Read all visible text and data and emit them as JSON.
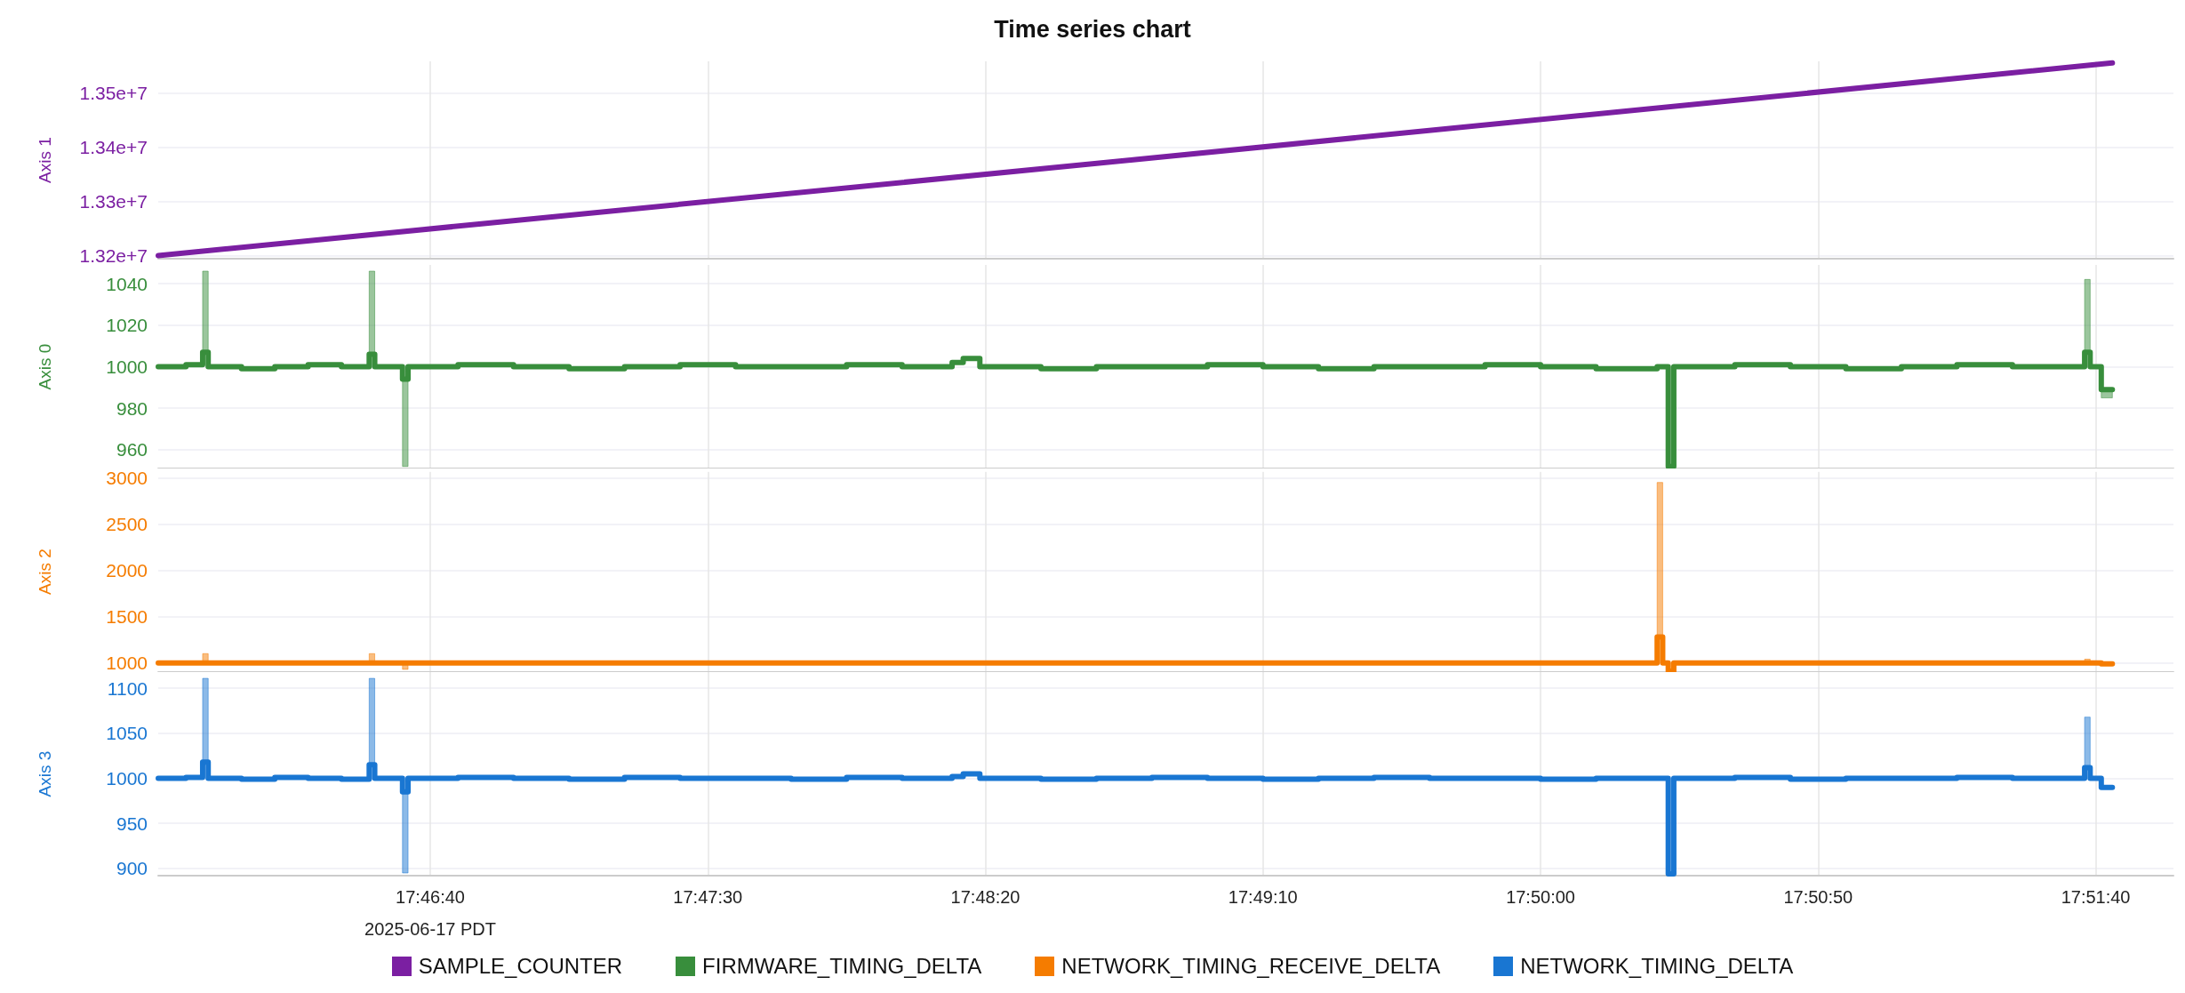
{
  "chart_data": [
    {
      "type": "line",
      "title": "Time series chart",
      "ylabel": "Axis 1",
      "x": [
        "2025-06-17T17:45:51",
        "2025-06-17T17:48:47",
        "2025-06-17T17:51:43"
      ],
      "series": [
        {
          "name": "SAMPLE_COUNTER",
          "color": "#7b1fa2",
          "values": [
            13200000,
            13377000,
            13555000
          ]
        }
      ],
      "xlim": [
        "2025-06-17T17:45:51",
        "2025-06-17T17:51:54"
      ],
      "xticks": [
        {
          "value": "2025-06-17T17:46:40",
          "label": null
        },
        {
          "value": "2025-06-17T17:47:30",
          "label": null
        },
        {
          "value": "2025-06-17T17:48:20",
          "label": null
        },
        {
          "value": "2025-06-17T17:49:10",
          "label": null
        },
        {
          "value": "2025-06-17T17:50:00",
          "label": null
        },
        {
          "value": "2025-06-17T17:50:50",
          "label": null
        },
        {
          "value": "2025-06-17T17:51:40",
          "label": null
        }
      ],
      "ylim": [
        13194000,
        13558000
      ],
      "yticks": [
        {
          "value": 13200000,
          "label": "1.32e+7"
        },
        {
          "value": 13300000,
          "label": "1.33e+7"
        },
        {
          "value": 13400000,
          "label": "1.34e+7"
        },
        {
          "value": 13500000,
          "label": "1.35e+7"
        }
      ],
      "grid": true,
      "legend": "bottom",
      "tick_labels": "y"
    },
    {
      "type": "step",
      "ylabel": "Axis 0",
      "x": [
        "2025-06-17T17:45:51",
        "2025-06-17T17:45:56",
        "2025-06-17T17:45:59",
        "2025-06-17T17:46:00",
        "2025-06-17T17:46:06",
        "2025-06-17T17:46:12",
        "2025-06-17T17:46:18",
        "2025-06-17T17:46:24",
        "2025-06-17T17:46:29",
        "2025-06-17T17:46:30",
        "2025-06-17T17:46:35",
        "2025-06-17T17:46:36",
        "2025-06-17T17:46:45",
        "2025-06-17T17:46:55",
        "2025-06-17T17:47:05",
        "2025-06-17T17:47:15",
        "2025-06-17T17:47:25",
        "2025-06-17T17:47:35",
        "2025-06-17T17:47:45",
        "2025-06-17T17:47:55",
        "2025-06-17T17:48:05",
        "2025-06-17T17:48:14",
        "2025-06-17T17:48:16",
        "2025-06-17T17:48:19",
        "2025-06-17T17:48:30",
        "2025-06-17T17:48:40",
        "2025-06-17T17:48:50",
        "2025-06-17T17:49:00",
        "2025-06-17T17:49:10",
        "2025-06-17T17:49:20",
        "2025-06-17T17:49:30",
        "2025-06-17T17:49:40",
        "2025-06-17T17:49:50",
        "2025-06-17T17:50:00",
        "2025-06-17T17:50:10",
        "2025-06-17T17:50:21",
        "2025-06-17T17:50:22",
        "2025-06-17T17:50:23",
        "2025-06-17T17:50:24",
        "2025-06-17T17:50:35",
        "2025-06-17T17:50:45",
        "2025-06-17T17:50:55",
        "2025-06-17T17:51:05",
        "2025-06-17T17:51:15",
        "2025-06-17T17:51:25",
        "2025-06-17T17:51:35",
        "2025-06-17T17:51:38",
        "2025-06-17T17:51:39",
        "2025-06-17T17:51:41",
        "2025-06-17T17:51:43"
      ],
      "series": [
        {
          "name": "FIRMWARE_TIMING_DELTA",
          "color": "#388e3c",
          "values": [
            1000,
            1001,
            1007,
            1000,
            999,
            1000,
            1001,
            1000,
            1006,
            1000,
            994,
            1000,
            1001,
            1000,
            999,
            1000,
            1001,
            1000,
            1000,
            1001,
            1000,
            1002,
            1004,
            1000,
            999,
            1000,
            1000,
            1001,
            1000,
            999,
            1000,
            1000,
            1001,
            1000,
            999,
            1000,
            1000,
            952,
            1000,
            1001,
            1000,
            999,
            1000,
            1001,
            1000,
            1000,
            1007,
            1000,
            989,
            989
          ],
          "upper": [
            1000,
            1001,
            1046,
            1000,
            999,
            1000,
            1001,
            1000,
            1046,
            1000,
            994,
            1000,
            1001,
            1000,
            999,
            1000,
            1001,
            1000,
            1000,
            1001,
            1000,
            1002,
            1004,
            1000,
            999,
            1000,
            1000,
            1001,
            1000,
            999,
            1000,
            1000,
            1001,
            1000,
            999,
            1000,
            1000,
            952,
            1000,
            1001,
            1000,
            999,
            1000,
            1001,
            1000,
            1000,
            1042,
            1000,
            989,
            989
          ],
          "lower": [
            1000,
            1001,
            1007,
            1000,
            999,
            1000,
            1001,
            1000,
            1006,
            1000,
            952,
            1000,
            1001,
            1000,
            999,
            1000,
            1001,
            1000,
            1000,
            1001,
            1000,
            1002,
            1004,
            1000,
            999,
            1000,
            1000,
            1001,
            1000,
            999,
            1000,
            1000,
            1001,
            1000,
            999,
            1000,
            1000,
            952,
            1000,
            1001,
            1000,
            999,
            1000,
            1001,
            1000,
            1000,
            1007,
            1000,
            985,
            989
          ]
        }
      ],
      "xlim": [
        "2025-06-17T17:45:51",
        "2025-06-17T17:51:54"
      ],
      "xticks": [
        {
          "value": "2025-06-17T17:46:40",
          "label": null
        },
        {
          "value": "2025-06-17T17:47:30",
          "label": null
        },
        {
          "value": "2025-06-17T17:48:20",
          "label": null
        },
        {
          "value": "2025-06-17T17:49:10",
          "label": null
        },
        {
          "value": "2025-06-17T17:50:00",
          "label": null
        },
        {
          "value": "2025-06-17T17:50:50",
          "label": null
        },
        {
          "value": "2025-06-17T17:51:40",
          "label": null
        }
      ],
      "ylim": [
        951,
        1049
      ],
      "yticks": [
        960,
        980,
        1000,
        1020,
        1040
      ],
      "grid": true,
      "legend": "bottom",
      "tick_labels": "y"
    },
    {
      "type": "step",
      "ylabel": "Axis 2",
      "x": [
        "2025-06-17T17:45:51",
        "2025-06-17T17:45:56",
        "2025-06-17T17:45:59",
        "2025-06-17T17:46:00",
        "2025-06-17T17:46:06",
        "2025-06-17T17:46:12",
        "2025-06-17T17:46:18",
        "2025-06-17T17:46:24",
        "2025-06-17T17:46:29",
        "2025-06-17T17:46:30",
        "2025-06-17T17:46:35",
        "2025-06-17T17:46:36",
        "2025-06-17T17:46:45",
        "2025-06-17T17:46:55",
        "2025-06-17T17:47:05",
        "2025-06-17T17:47:15",
        "2025-06-17T17:47:25",
        "2025-06-17T17:47:35",
        "2025-06-17T17:47:45",
        "2025-06-17T17:47:55",
        "2025-06-17T17:48:05",
        "2025-06-17T17:48:14",
        "2025-06-17T17:48:16",
        "2025-06-17T17:48:19",
        "2025-06-17T17:48:30",
        "2025-06-17T17:48:40",
        "2025-06-17T17:48:50",
        "2025-06-17T17:49:00",
        "2025-06-17T17:49:10",
        "2025-06-17T17:49:20",
        "2025-06-17T17:49:30",
        "2025-06-17T17:49:40",
        "2025-06-17T17:49:50",
        "2025-06-17T17:50:00",
        "2025-06-17T17:50:10",
        "2025-06-17T17:50:21",
        "2025-06-17T17:50:22",
        "2025-06-17T17:50:23",
        "2025-06-17T17:50:24",
        "2025-06-17T17:50:35",
        "2025-06-17T17:50:45",
        "2025-06-17T17:50:55",
        "2025-06-17T17:51:05",
        "2025-06-17T17:51:15",
        "2025-06-17T17:51:25",
        "2025-06-17T17:51:35",
        "2025-06-17T17:51:38",
        "2025-06-17T17:51:39",
        "2025-06-17T17:51:41",
        "2025-06-17T17:51:43"
      ],
      "series": [
        {
          "name": "NETWORK_TIMING_RECEIVE_DELTA",
          "color": "#f57c00",
          "values": [
            1000,
            1000,
            1000,
            1000,
            1000,
            1000,
            1000,
            1000,
            1000,
            1000,
            1000,
            1000,
            1000,
            1000,
            1000,
            1000,
            1000,
            1000,
            1000,
            1000,
            1000,
            1000,
            1000,
            1000,
            1000,
            1000,
            1000,
            1000,
            1000,
            1000,
            1000,
            1000,
            1000,
            1000,
            1000,
            1280,
            1000,
            910,
            1000,
            1000,
            1000,
            1000,
            1000,
            1000,
            1000,
            1000,
            1000,
            1000,
            990,
            990
          ],
          "upper": [
            1000,
            1000,
            1100,
            1000,
            1000,
            1000,
            1000,
            1000,
            1100,
            1000,
            1000,
            1000,
            1000,
            1000,
            1000,
            1000,
            1000,
            1000,
            1000,
            1000,
            1000,
            1000,
            1000,
            1000,
            1000,
            1000,
            1000,
            1000,
            1000,
            1000,
            1000,
            1000,
            1000,
            1000,
            1000,
            2950,
            1000,
            910,
            1000,
            1000,
            1000,
            1000,
            1000,
            1000,
            1000,
            1000,
            1040,
            1000,
            990,
            990
          ],
          "lower": [
            1000,
            1000,
            1000,
            1000,
            1000,
            1000,
            1000,
            1000,
            1000,
            1000,
            930,
            1000,
            1000,
            1000,
            1000,
            1000,
            1000,
            1000,
            1000,
            1000,
            1000,
            1000,
            1000,
            1000,
            1000,
            1000,
            1000,
            1000,
            1000,
            1000,
            1000,
            1000,
            1000,
            1000,
            1000,
            1280,
            1000,
            905,
            1000,
            1000,
            1000,
            1000,
            1000,
            1000,
            1000,
            1000,
            1000,
            1000,
            990,
            990
          ]
        }
      ],
      "xlim": [
        "2025-06-17T17:45:51",
        "2025-06-17T17:51:54"
      ],
      "xticks": [
        {
          "value": "2025-06-17T17:46:40",
          "label": null
        },
        {
          "value": "2025-06-17T17:47:30",
          "label": null
        },
        {
          "value": "2025-06-17T17:48:20",
          "label": null
        },
        {
          "value": "2025-06-17T17:49:10",
          "label": null
        },
        {
          "value": "2025-06-17T17:50:00",
          "label": null
        },
        {
          "value": "2025-06-17T17:50:50",
          "label": null
        },
        {
          "value": "2025-06-17T17:51:40",
          "label": null
        }
      ],
      "ylim": [
        905,
        3065
      ],
      "yticks": [
        1000,
        1500,
        2000,
        2500,
        3000
      ],
      "grid": true,
      "legend": "bottom",
      "tick_labels": "y"
    },
    {
      "type": "step",
      "ylabel": "Axis 3",
      "annotations": [
        "2025-06-17 PDT"
      ],
      "x": [
        "2025-06-17T17:45:51",
        "2025-06-17T17:45:56",
        "2025-06-17T17:45:59",
        "2025-06-17T17:46:00",
        "2025-06-17T17:46:06",
        "2025-06-17T17:46:12",
        "2025-06-17T17:46:18",
        "2025-06-17T17:46:24",
        "2025-06-17T17:46:29",
        "2025-06-17T17:46:30",
        "2025-06-17T17:46:35",
        "2025-06-17T17:46:36",
        "2025-06-17T17:46:45",
        "2025-06-17T17:46:55",
        "2025-06-17T17:47:05",
        "2025-06-17T17:47:15",
        "2025-06-17T17:47:25",
        "2025-06-17T17:47:35",
        "2025-06-17T17:47:45",
        "2025-06-17T17:47:55",
        "2025-06-17T17:48:05",
        "2025-06-17T17:48:14",
        "2025-06-17T17:48:16",
        "2025-06-17T17:48:19",
        "2025-06-17T17:48:30",
        "2025-06-17T17:48:40",
        "2025-06-17T17:48:50",
        "2025-06-17T17:49:00",
        "2025-06-17T17:49:10",
        "2025-06-17T17:49:20",
        "2025-06-17T17:49:30",
        "2025-06-17T17:49:40",
        "2025-06-17T17:49:50",
        "2025-06-17T17:50:00",
        "2025-06-17T17:50:10",
        "2025-06-17T17:50:21",
        "2025-06-17T17:50:22",
        "2025-06-17T17:50:23",
        "2025-06-17T17:50:24",
        "2025-06-17T17:50:35",
        "2025-06-17T17:50:45",
        "2025-06-17T17:50:55",
        "2025-06-17T17:51:05",
        "2025-06-17T17:51:15",
        "2025-06-17T17:51:25",
        "2025-06-17T17:51:35",
        "2025-06-17T17:51:38",
        "2025-06-17T17:51:39",
        "2025-06-17T17:51:41",
        "2025-06-17T17:51:43"
      ],
      "series": [
        {
          "name": "NETWORK_TIMING_DELTA",
          "color": "#1976d2",
          "values": [
            1000,
            1001,
            1018,
            1000,
            999,
            1001,
            1000,
            999,
            1015,
            1000,
            985,
            1000,
            1001,
            1000,
            999,
            1001,
            1000,
            1000,
            999,
            1001,
            1000,
            1002,
            1005,
            1000,
            999,
            1000,
            1001,
            1000,
            999,
            1000,
            1001,
            1000,
            1000,
            999,
            1000,
            1000,
            1000,
            894,
            1000,
            1001,
            999,
            1000,
            1000,
            1001,
            1000,
            1000,
            1012,
            1000,
            990,
            990
          ],
          "upper": [
            1000,
            1001,
            1111,
            1000,
            999,
            1001,
            1000,
            999,
            1111,
            1000,
            985,
            1000,
            1001,
            1000,
            999,
            1001,
            1000,
            1000,
            999,
            1001,
            1000,
            1002,
            1005,
            1000,
            999,
            1000,
            1001,
            1000,
            999,
            1000,
            1001,
            1000,
            1000,
            999,
            1000,
            1000,
            1000,
            894,
            1000,
            1001,
            999,
            1000,
            1000,
            1001,
            1000,
            1000,
            1068,
            1000,
            990,
            990
          ],
          "lower": [
            1000,
            1001,
            1018,
            1000,
            999,
            1001,
            1000,
            999,
            1015,
            1000,
            895,
            1000,
            1001,
            1000,
            999,
            1001,
            1000,
            1000,
            999,
            1001,
            1000,
            1002,
            1005,
            1000,
            999,
            1000,
            1001,
            1000,
            999,
            1000,
            1001,
            1000,
            1000,
            999,
            1000,
            1000,
            1000,
            894,
            1000,
            1001,
            999,
            1000,
            1000,
            1001,
            1000,
            1000,
            1012,
            1000,
            990,
            990
          ]
        }
      ],
      "xlim": [
        "2025-06-17T17:45:51",
        "2025-06-17T17:51:54"
      ],
      "xticks": [
        {
          "value": "2025-06-17T17:46:40",
          "label": "17:46:40"
        },
        {
          "value": "2025-06-17T17:47:30",
          "label": "17:47:30"
        },
        {
          "value": "2025-06-17T17:48:20",
          "label": "17:48:20"
        },
        {
          "value": "2025-06-17T17:49:10",
          "label": "17:49:10"
        },
        {
          "value": "2025-06-17T17:50:00",
          "label": "17:50:00"
        },
        {
          "value": "2025-06-17T17:50:50",
          "label": "17:50:50"
        },
        {
          "value": "2025-06-17T17:51:40",
          "label": "17:51:40"
        }
      ],
      "ylim": [
        892,
        1118
      ],
      "yticks": [
        900,
        950,
        1000,
        1050,
        1100
      ],
      "grid": true,
      "legend": "bottom"
    }
  ]
}
